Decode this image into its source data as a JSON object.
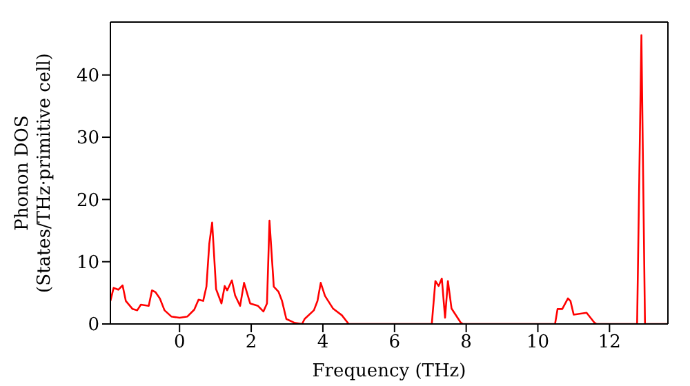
{
  "chart_data": {
    "type": "line",
    "xlabel": "Frequency (THz)",
    "ylabel": "Phonon DOS\n(States/THz·primitive cell)",
    "x": [
      -1.93,
      -1.84,
      -1.71,
      -1.59,
      -1.5,
      -1.31,
      -1.18,
      -1.08,
      -0.86,
      -0.77,
      -0.67,
      -0.55,
      -0.42,
      -0.23,
      0,
      0.22,
      0.41,
      0.53,
      0.66,
      0.75,
      0.83,
      0.91,
      1.02,
      1.17,
      1.26,
      1.33,
      1.46,
      1.55,
      1.69,
      1.8,
      1.97,
      2.19,
      2.34,
      2.44,
      2.51,
      2.63,
      2.76,
      2.86,
      2.98,
      3.2,
      3.42,
      3.49,
      3.75,
      3.85,
      3.94,
      4.06,
      4.28,
      4.53,
      4.72,
      7.04,
      7.14,
      7.23,
      7.32,
      7.41,
      7.49,
      7.59,
      7.85,
      7.91,
      10.48,
      10.55,
      10.68,
      10.84,
      10.91,
      11.0,
      11.36,
      11.58,
      11.64,
      12.77,
      12.89,
      12.99,
      13.63
    ],
    "series": [
      {
        "color": "#ff0000",
        "values": [
          3.7,
          5.8,
          5.5,
          6.2,
          3.7,
          2.4,
          2.2,
          3.1,
          2.9,
          5.4,
          5.1,
          4.1,
          2.2,
          1.2,
          1.0,
          1.2,
          2.3,
          3.9,
          3.7,
          6.0,
          12.9,
          16.3,
          5.6,
          3.3,
          6.1,
          5.4,
          7.0,
          4.6,
          2.9,
          6.6,
          3.3,
          2.9,
          2.0,
          3.3,
          16.6,
          6.0,
          5.2,
          3.7,
          0.8,
          0.2,
          0,
          0.8,
          2.2,
          3.7,
          6.6,
          4.5,
          2.5,
          1.4,
          0,
          0,
          6.9,
          6.1,
          7.3,
          1.0,
          6.9,
          2.5,
          0.2,
          0,
          0,
          2.4,
          2.4,
          4.1,
          3.7,
          1.5,
          1.8,
          0.2,
          0,
          0,
          46.4,
          0,
          0
        ]
      }
    ],
    "xlim": [
      -1.93,
      13.63
    ],
    "xticks": [
      0,
      2,
      4,
      6,
      8,
      10,
      12
    ],
    "ylim": [
      0,
      48.5
    ],
    "yticks": [
      0,
      10,
      20,
      30,
      40
    ],
    "grid": false,
    "legend": false,
    "marker": "none",
    "line_style": "solid"
  }
}
